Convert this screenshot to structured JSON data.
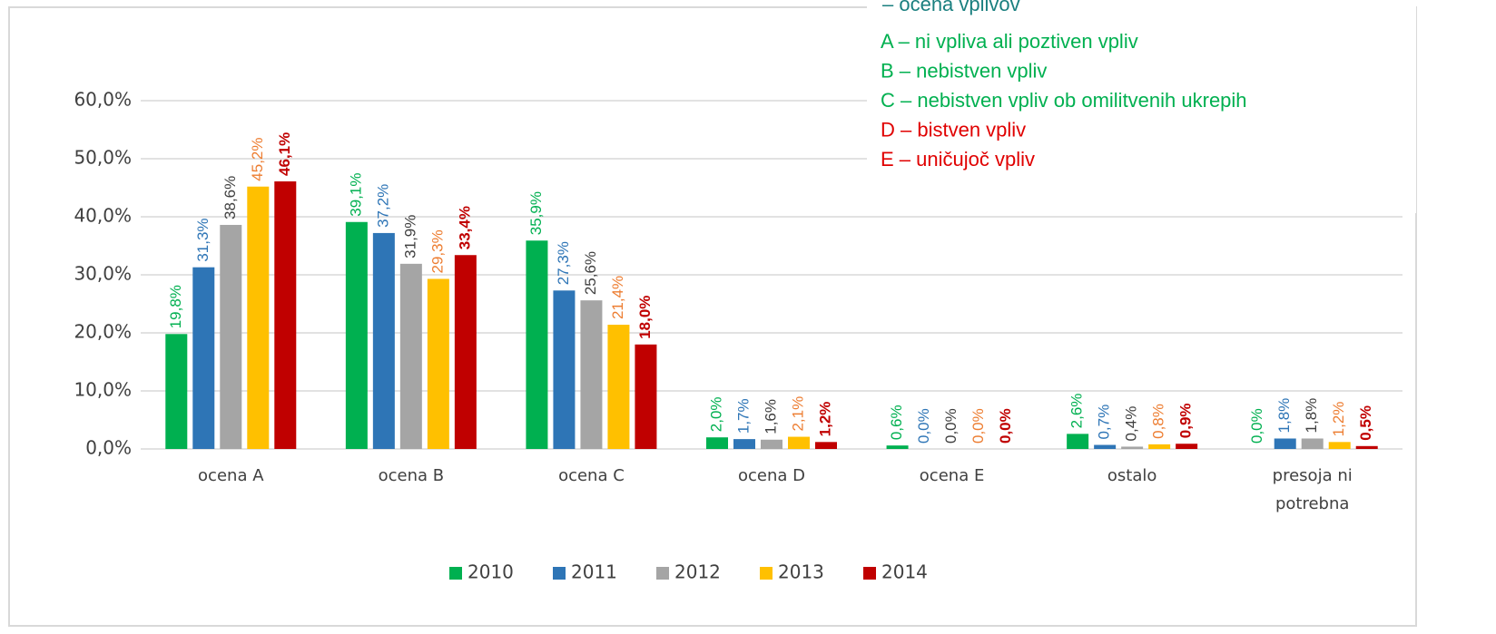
{
  "chart_data": {
    "type": "bar",
    "categories": [
      "ocena A",
      "ocena B",
      "ocena C",
      "ocena D",
      "ocena E",
      "ostalo",
      "presoja ni potrebna"
    ],
    "series": [
      {
        "name": "2010",
        "color": "#00b050",
        "label_color": "#00b050",
        "values": [
          19.8,
          39.1,
          35.9,
          2.0,
          0.6,
          2.6,
          0.0
        ],
        "value_labels": [
          "19,8%",
          "39,1%",
          "35,9%",
          "2,0%",
          "0,6%",
          "2,6%",
          "0,0%"
        ]
      },
      {
        "name": "2011",
        "color": "#2e75b6",
        "label_color": "#2e75b6",
        "values": [
          31.3,
          37.2,
          27.3,
          1.7,
          0.0,
          0.7,
          1.8
        ],
        "value_labels": [
          "31,3%",
          "37,2%",
          "27,3%",
          "1,7%",
          "0,0%",
          "0,7%",
          "1,8%"
        ]
      },
      {
        "name": "2012",
        "color": "#a5a5a5",
        "label_color": "#404040",
        "values": [
          38.6,
          31.9,
          25.6,
          1.6,
          0.0,
          0.4,
          1.8
        ],
        "value_labels": [
          "38,6%",
          "31,9%",
          "25,6%",
          "1,6%",
          "0,0%",
          "0,4%",
          "1,8%"
        ]
      },
      {
        "name": "2013",
        "color": "#ffc000",
        "label_color": "#ed7d31",
        "values": [
          45.2,
          29.3,
          21.4,
          2.1,
          0.0,
          0.8,
          1.2
        ],
        "value_labels": [
          "45,2%",
          "29,3%",
          "21,4%",
          "2,1%",
          "0,0%",
          "0,8%",
          "1,2%"
        ]
      },
      {
        "name": "2014",
        "color": "#c00000",
        "label_color": "#c00000",
        "bold_labels": true,
        "values": [
          46.1,
          33.4,
          18.0,
          1.2,
          0.0,
          0.9,
          0.5
        ],
        "value_labels": [
          "46,1%",
          "33,4%",
          "18,0%",
          "1,2%",
          "0,0%",
          "0,9%",
          "0,5%"
        ]
      }
    ],
    "ylim": [
      0,
      60
    ],
    "yticks": [
      {
        "value": 0,
        "label": "0,0%"
      },
      {
        "value": 10,
        "label": "10,0%"
      },
      {
        "value": 20,
        "label": "20,0%"
      },
      {
        "value": 30,
        "label": "30,0%"
      },
      {
        "value": 40,
        "label": "40,0%"
      },
      {
        "value": 50,
        "label": "50,0%"
      },
      {
        "value": 60,
        "label": "60,0%"
      }
    ],
    "grid": true,
    "legend": "bottom",
    "annotations": [
      {
        "text": "– ocena vplivov",
        "color": "#1a7f7f"
      },
      {
        "text": "A – ni vpliva ali poztiven vpliv",
        "color": "#00b050"
      },
      {
        "text": "B – nebistven vpliv",
        "color": "#00b050"
      },
      {
        "text": "C – nebistven vpliv ob omilitvenih ukrepih",
        "color": "#00b050"
      },
      {
        "text": "D – bistven vpliv",
        "color": "#e00000"
      },
      {
        "text": "E – uničujoč vpliv",
        "color": "#e00000"
      }
    ]
  }
}
